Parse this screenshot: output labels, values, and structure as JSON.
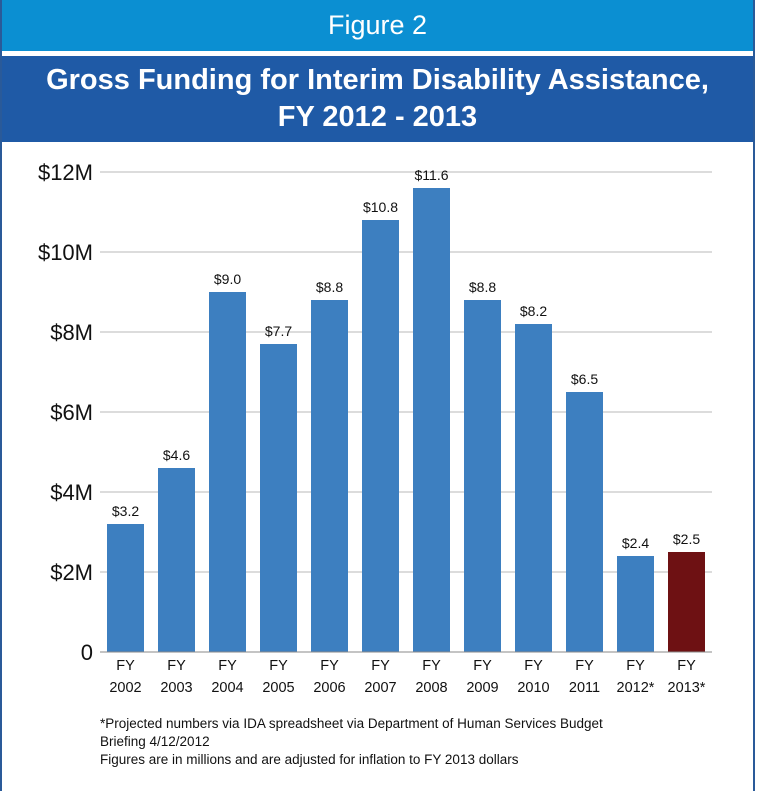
{
  "header": {
    "figure_label": "Figure 2",
    "title_line1": "Gross Funding for Interim Disability Assistance,",
    "title_line2": "FY 2012 - 2013"
  },
  "colors": {
    "bar": "#3d7fc0",
    "highlight_bar": "#6e1113",
    "figure_bar": "#0b8fd2",
    "title_bar": "#1f5aa6"
  },
  "chart_data": {
    "type": "bar",
    "title": "Gross Funding for Interim Disability Assistance, FY 2012 - 2013",
    "categories": [
      [
        "FY",
        "2002"
      ],
      [
        "FY",
        "2003"
      ],
      [
        "FY",
        "2004"
      ],
      [
        "FY",
        "2005"
      ],
      [
        "FY",
        "2006"
      ],
      [
        "FY",
        "2007"
      ],
      [
        "FY",
        "2008"
      ],
      [
        "FY",
        "2009"
      ],
      [
        "FY",
        "2010"
      ],
      [
        "FY",
        "2011"
      ],
      [
        "FY",
        "2012*"
      ],
      [
        "FY",
        "2013*"
      ]
    ],
    "values": [
      3.2,
      4.6,
      9.0,
      7.7,
      8.8,
      10.8,
      11.6,
      8.8,
      8.2,
      6.5,
      2.4,
      2.5
    ],
    "value_labels": [
      "$3.2",
      "$4.6",
      "$9.0",
      "$7.7",
      "$8.8",
      "$10.8",
      "$11.6",
      "$8.8",
      "$8.2",
      "$6.5",
      "$2.4",
      "$2.5"
    ],
    "highlight_index": 11,
    "yticks": [
      0,
      2,
      4,
      6,
      8,
      10,
      12
    ],
    "ytick_labels": [
      "0",
      "$2M",
      "$4M",
      "$6M",
      "$8M",
      "$10M",
      "$12M"
    ],
    "ylim": [
      0,
      12
    ],
    "xlabel": "",
    "ylabel": "",
    "grid": true
  },
  "notes": {
    "line1": "*Projected numbers via IDA spreadsheet via Department of Human Services Budget",
    "line2": "Briefing 4/12/2012",
    "line3": "Figures are in millions and are adjusted for inflation to FY 2013 dollars"
  }
}
